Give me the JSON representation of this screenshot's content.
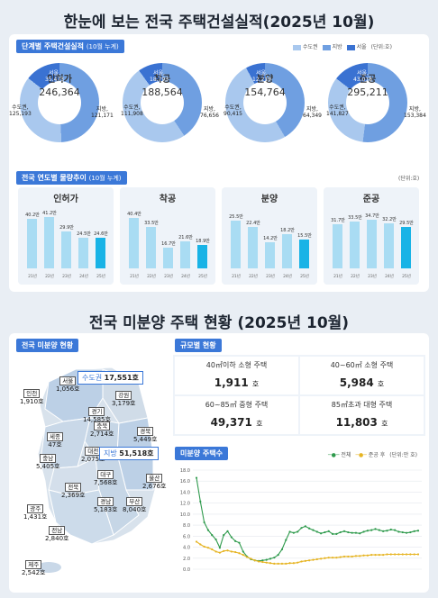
{
  "page": {
    "title1": "한눈에 보는 전국 주택건설실적(2025년 10월)",
    "title2": "전국 미분양 주택 현황 (2025년 10월)"
  },
  "colors": {
    "capital": "#a9c8ee",
    "local": "#6f9fe1",
    "seoul": "#3a72d2",
    "bar": "#a9dcf3",
    "bar_last": "#19b3e6",
    "line_all": "#2e9a4c",
    "line_after": "#e6b422"
  },
  "sec1": {
    "tag": "단계별 주택건설실적",
    "tag_sub": "(10월 누계)",
    "legend": {
      "capital": "수도권",
      "local": "지방",
      "seoul": "서울",
      "unit": "(단위:호)"
    },
    "donuts": [
      {
        "name": "인허가",
        "total": "246,364",
        "seoul_label": "서울,",
        "seoul": "35,473",
        "capital_label": "수도권,",
        "capital": "125,193",
        "local_label": "지방,",
        "local": "121,171"
      },
      {
        "name": "착공",
        "total": "188,564",
        "seoul_label": "서울,",
        "seoul": "18,793",
        "capital_label": "수도권,",
        "capital": "111,908",
        "local_label": "지방,",
        "local": "76,656"
      },
      {
        "name": "분양",
        "total": "154,764",
        "seoul_label": "서울,",
        "seoul": "12,219",
        "capital_label": "수도권,",
        "capital": "90,415",
        "local_label": "지방,",
        "local": "64,349"
      },
      {
        "name": "준공",
        "total": "295,211",
        "seoul_label": "서울,",
        "seoul": "43,018",
        "capital_label": "수도권,",
        "capital": "141,827",
        "local_label": "지방,",
        "local": "153,384"
      }
    ]
  },
  "sec2": {
    "tag": "전국 연도별 물량추이",
    "tag_sub": "(10월 누계)",
    "unit": "(단위:호)"
  },
  "chart_data": [
    {
      "type": "pie",
      "title": "인허가",
      "categories": [
        "수도권",
        "지방"
      ],
      "values": [
        125193,
        121171
      ],
      "sub": {
        "서울": 35473
      },
      "total": 246364
    },
    {
      "type": "pie",
      "title": "착공",
      "categories": [
        "수도권",
        "지방"
      ],
      "values": [
        111908,
        76656
      ],
      "sub": {
        "서울": 18793
      },
      "total": 188564
    },
    {
      "type": "pie",
      "title": "분양",
      "categories": [
        "수도권",
        "지방"
      ],
      "values": [
        90415,
        64349
      ],
      "sub": {
        "서울": 12219
      },
      "total": 154764
    },
    {
      "type": "pie",
      "title": "준공",
      "categories": [
        "수도권",
        "지방"
      ],
      "values": [
        141827,
        153384
      ],
      "sub": {
        "서울": 43018
      },
      "total": 295211
    },
    {
      "type": "bar",
      "title": "인허가",
      "categories": [
        "21년",
        "22년",
        "23년",
        "24년",
        "25년"
      ],
      "values": [
        40.2,
        41.2,
        29.9,
        24.5,
        24.6
      ],
      "labels": [
        "40.2만",
        "41.2만",
        "29.9만",
        "24.5만",
        "24.6만"
      ],
      "ylim": [
        0,
        45
      ]
    },
    {
      "type": "bar",
      "title": "착공",
      "categories": [
        "21년",
        "22년",
        "23년",
        "24년",
        "25년"
      ],
      "values": [
        40.4,
        33.5,
        16.7,
        21.6,
        18.9
      ],
      "labels": [
        "40.4만",
        "33.5만",
        "16.7만",
        "21.6만",
        "18.9만"
      ],
      "ylim": [
        0,
        45
      ]
    },
    {
      "type": "bar",
      "title": "분양",
      "categories": [
        "21년",
        "22년",
        "23년",
        "24년",
        "25년"
      ],
      "values": [
        25.5,
        22.4,
        14.2,
        18.2,
        15.5
      ],
      "labels": [
        "25.5만",
        "22.4만",
        "14.2만",
        "18.2만",
        "15.5만"
      ],
      "ylim": [
        0,
        30
      ]
    },
    {
      "type": "bar",
      "title": "준공",
      "categories": [
        "21년",
        "22년",
        "23년",
        "24년",
        "25년"
      ],
      "values": [
        31.7,
        33.5,
        34.7,
        32.2,
        29.5
      ],
      "labels": [
        "31.7만",
        "33.5만",
        "34.7만",
        "32.2만",
        "29.5만"
      ],
      "ylim": [
        0,
        40
      ]
    },
    {
      "type": "line",
      "title": "미분양 주택수",
      "ylim": [
        0,
        18
      ],
      "yticks": [
        "0.0",
        "2.0",
        "4.0",
        "6.0",
        "8.0",
        "10.0",
        "12.0",
        "14.0",
        "16.0",
        "18.0"
      ],
      "series": [
        {
          "name": "전체",
          "values": [
            16.6,
            12.3,
            8.5,
            7.1,
            6.2,
            5.4,
            3.9,
            6.2,
            6.9,
            5.8,
            5.1,
            4.8,
            3.2,
            2.3,
            1.8,
            1.6,
            1.5,
            1.6,
            1.7,
            1.9,
            2.1,
            2.6,
            3.6,
            5.3,
            6.8,
            6.6,
            6.8,
            7.5,
            7.8,
            7.4,
            7.1,
            6.8,
            6.5,
            6.7,
            6.9,
            6.4,
            6.4,
            6.7,
            6.9,
            6.7,
            6.6,
            6.6,
            6.5,
            6.8,
            7.0,
            7.1,
            7.3,
            7.1,
            6.9,
            7.0,
            7.2,
            7.1,
            6.8,
            6.7,
            6.6,
            6.7,
            6.9,
            7.0
          ]
        },
        {
          "name": "준공 후",
          "values": [
            5.0,
            4.5,
            4.1,
            3.9,
            3.6,
            3.2,
            3.0,
            3.3,
            3.4,
            3.2,
            3.1,
            2.9,
            2.6,
            2.2,
            1.9,
            1.6,
            1.4,
            1.3,
            1.2,
            1.1,
            1.0,
            1.0,
            1.0,
            1.0,
            1.1,
            1.1,
            1.2,
            1.4,
            1.5,
            1.6,
            1.7,
            1.8,
            1.9,
            2.0,
            2.1,
            2.1,
            2.1,
            2.2,
            2.3,
            2.3,
            2.3,
            2.4,
            2.4,
            2.5,
            2.5,
            2.6,
            2.6,
            2.6,
            2.6,
            2.7,
            2.7,
            2.7,
            2.7,
            2.7,
            2.7,
            2.7,
            2.7,
            2.7
          ]
        }
      ]
    }
  ],
  "sec3": {
    "tag": "전국 미분양 현황",
    "capital_label": "수도권",
    "capital_value": "17,551호",
    "local_label": "지방",
    "local_value": "51,518호",
    "regions": [
      {
        "name": "서울",
        "value": "1,056호"
      },
      {
        "name": "인천",
        "value": "1,910호"
      },
      {
        "name": "강원",
        "value": "3,179호"
      },
      {
        "name": "경기",
        "value": "14,585호"
      },
      {
        "name": "충북",
        "value": "2,714호"
      },
      {
        "name": "경북",
        "value": "5,449호"
      },
      {
        "name": "세종",
        "value": "47호"
      },
      {
        "name": "대전",
        "value": "2,075호"
      },
      {
        "name": "충남",
        "value": "5,405호"
      },
      {
        "name": "대구",
        "value": "7,568호"
      },
      {
        "name": "울산",
        "value": "2,676호"
      },
      {
        "name": "전북",
        "value": "2,369호"
      },
      {
        "name": "경남",
        "value": "5,183호"
      },
      {
        "name": "부산",
        "value": "8,040호"
      },
      {
        "name": "광주",
        "value": "1,431호"
      },
      {
        "name": "전남",
        "value": "2,840호"
      },
      {
        "name": "제주",
        "value": "2,542호"
      }
    ]
  },
  "sec4": {
    "tag": "규모별 현황",
    "cells": [
      {
        "label": "40㎡이하 소형 주택",
        "value": "1,911",
        "unit": "호"
      },
      {
        "label": "40~60㎡ 소형 주택",
        "value": "5,984",
        "unit": "호"
      },
      {
        "label": "60~85㎡ 중형 주택",
        "value": "49,371",
        "unit": "호"
      },
      {
        "label": "85㎡초과 대형 주택",
        "value": "11,803",
        "unit": "호"
      }
    ]
  },
  "sec5": {
    "tag": "미분양 주택수",
    "legend_all": "전체",
    "legend_after": "준공 후",
    "unit": "(단위:만 호)"
  }
}
